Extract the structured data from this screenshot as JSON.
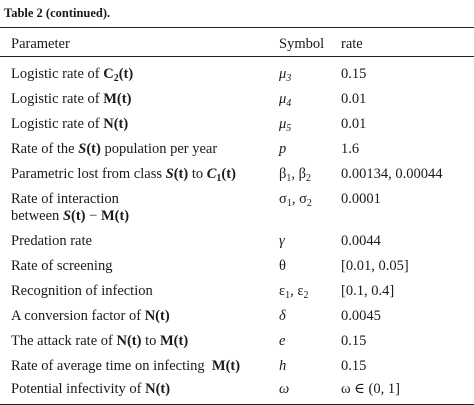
{
  "table": {
    "caption": "Table 2  (continued).",
    "header": {
      "parameter": "Parameter",
      "symbol": "Symbol",
      "rate": "rate"
    },
    "rows": [
      {
        "p_pre": "Logistic rate of ",
        "p_bold": "C",
        "p_sub": "2",
        "p_post": "(t)",
        "sym": "μ",
        "sym_sub": "3",
        "rate": "0.15"
      },
      {
        "p_pre": "Logistic rate of ",
        "p_bold": "M",
        "p_post": "(t)",
        "sym": "μ",
        "sym_sub": "4",
        "rate": "0.01"
      },
      {
        "p_pre": "Logistic rate of ",
        "p_bold": "N",
        "p_post": "(t)",
        "sym": "μ",
        "sym_sub": "5",
        "rate": "0.01"
      },
      {
        "p_pre": "Rate of the ",
        "p_bi": "S",
        "p_post": "(t)",
        "p_post2": " population per year",
        "sym": "p",
        "rate": "1.6"
      },
      {
        "p_pre": "Parametric lost from class ",
        "p_bi": "S",
        "p_post": "(t)",
        "p_mid": " to ",
        "p_bi2": "C",
        "p_sub2": "1",
        "p_post3": "(t)",
        "sym": "β",
        "sym_sub": "1",
        "sym_sep": ", β",
        "sym_sub2": "2",
        "rate": "0.00134, 0.00044"
      },
      {
        "p_line1": "Rate of interaction",
        "p_line2_pre": "between ",
        "p_bi": "S",
        "p_post": "(t)",
        "p_minus": " − ",
        "p_bold": "M",
        "p_post2": "(t)",
        "sym": "σ",
        "sym_sub": "1",
        "sym_sep": ", σ",
        "sym_sub2": "2",
        "rate": "0.0001"
      },
      {
        "p_pre": "Predation rate",
        "sym": "γ",
        "rate": "0.0044"
      },
      {
        "p_pre": "Rate of screening",
        "sym": "θ",
        "rate": "[0.01, 0.05]"
      },
      {
        "p_pre": "Recognition of infection",
        "sym": "ε",
        "sym_sub": "1",
        "sym_sep": ", ε",
        "sym_sub2": "2",
        "rate": "[0.1, 0.4]"
      },
      {
        "p_pre": "A conversion factor of ",
        "p_bold": "N",
        "p_post": "(t)",
        "sym": "δ",
        "rate": "0.0045"
      },
      {
        "p_pre": "The attack rate of ",
        "p_bold": "N",
        "p_post": "(t)",
        "p_mid": " to ",
        "p_bold2": "M",
        "p_post3": "(t)",
        "sym": "e",
        "rate": "0.15"
      },
      {
        "p_pre": "Rate of average time on infecting  ",
        "p_bold": "M",
        "p_post": "(t)",
        "sym": "h",
        "rate": "0.15"
      },
      {
        "p_pre": "Potential infectivity of ",
        "p_bold": "N",
        "p_post": "(t)",
        "sym": "ω",
        "rate": "ω ∈ (0, 1]"
      }
    ]
  }
}
